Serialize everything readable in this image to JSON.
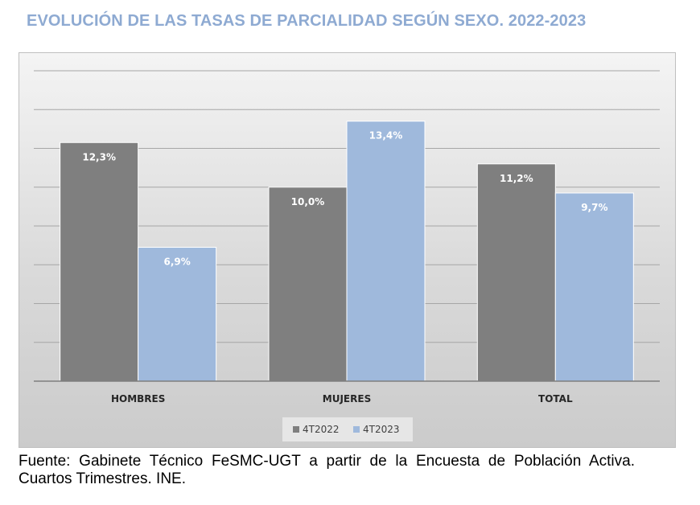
{
  "title": "EVOLUCIÓN DE LAS TASAS DE PARCIALIDAD SEGÚN SEXO. 2022-2023",
  "source": "Fuente: Gabinete Técnico FeSMC-UGT a partir de la Encuesta de Población Activa. Cuartos Trimestres. INE.",
  "colors": {
    "series_4T2022": "#7f7f7f",
    "series_4T2023": "#9fb9dc",
    "title": "#8eaad2"
  },
  "chart_data": {
    "type": "bar",
    "title": "EVOLUCIÓN DE LAS TASAS DE PARCIALIDAD SEGÚN SEXO. 2022-2023",
    "categories": [
      "HOMBRES",
      "MUJERES",
      "TOTAL"
    ],
    "series": [
      {
        "name": "4T2022",
        "values": [
          12.3,
          10.0,
          11.2
        ],
        "labels": [
          "12,3%",
          "10,0%",
          "11,2%"
        ]
      },
      {
        "name": "4T2023",
        "values": [
          6.9,
          13.4,
          9.7
        ],
        "labels": [
          "6,9%",
          "13,4%",
          "9,7%"
        ]
      }
    ],
    "ylim": [
      0,
      16
    ],
    "grid": true,
    "y_tick_labels_shown": false,
    "legend_position": "bottom"
  }
}
